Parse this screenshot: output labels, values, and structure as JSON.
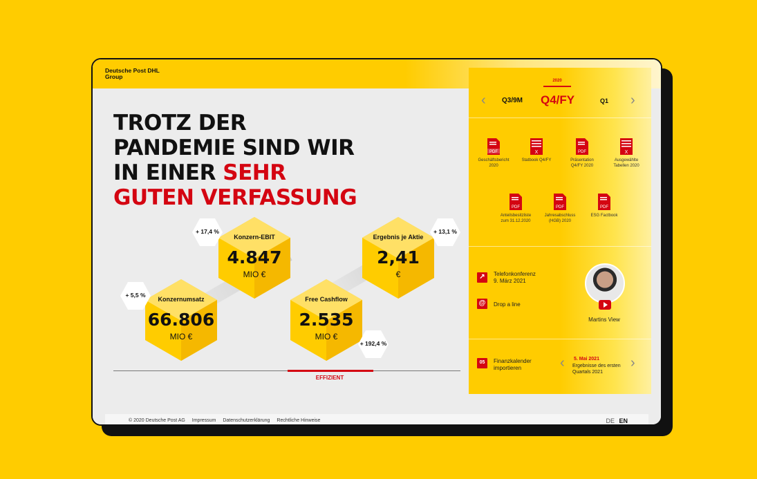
{
  "colors": {
    "background": "#ffcc00",
    "accent_red": "#d40511",
    "device_frame": "#111111"
  },
  "brand": {
    "line1": "Deutsche Post DHL",
    "line2": "Group"
  },
  "headline": {
    "line1": "TROTZ DER",
    "line2": "PANDEMIE SIND WIR",
    "line3a": "IN EINER ",
    "line3b": "SEHR",
    "line4": "GUTEN VERFASSUNG"
  },
  "kpis": [
    {
      "label": "Konzernumsatz",
      "value": "66.806",
      "unit": "MIO €",
      "change": "+ 5,5 %"
    },
    {
      "label": "Konzern-EBIT",
      "value": "4.847",
      "unit": "MIO €",
      "change": "+ 17,4 %"
    },
    {
      "label": "Free Cashflow",
      "value": "2.535",
      "unit": "MIO €",
      "change": "+ 192,4 %"
    },
    {
      "label": "Ergebnis je Aktie",
      "value": "2,41",
      "unit": "€",
      "change": "+ 13,1 %"
    }
  ],
  "effizient_label": "EFFIZIENT",
  "footer": {
    "copyright": "© 2020 Deutsche Post AG",
    "impressum": "Impressum",
    "datenschutz": "Datenschutzerklärung",
    "rechtlich": "Rechtliche Hinweise",
    "lang_de": "DE",
    "lang_en": "EN"
  },
  "panel": {
    "year": "2020",
    "quarter_prev": "Q3/9M",
    "quarter_current": "Q4/FY",
    "quarter_next": "Q1",
    "documents": [
      {
        "line1": "Geschäftsbericht",
        "line2": "2020",
        "icon": "pdf-icon"
      },
      {
        "line1": "Statbook Q4/FY",
        "line2": "",
        "icon": "excel-icon"
      },
      {
        "line1": "Präsentation",
        "line2": "Q4/FY 2020",
        "icon": "pdf-icon"
      },
      {
        "line1": "Ausgewählte",
        "line2": "Tabellen 2020",
        "icon": "excel-icon"
      },
      {
        "line1": "Anteilsbesitzliste",
        "line2": "zum 31.12.2020",
        "icon": "pdf-icon"
      },
      {
        "line1": "Jahresabschluss",
        "line2": "(HGB) 2020",
        "icon": "pdf-icon"
      },
      {
        "line1": "ESG Factbook",
        "line2": "",
        "icon": "pdf-icon"
      }
    ],
    "conference": {
      "line1": "Telefonkonferenz",
      "line2": "9. März 2021"
    },
    "drop_line": "Drop a line",
    "video_caption": "Martins View",
    "calendar": {
      "line1": "Finanzkalender",
      "line2": "importieren"
    },
    "event": {
      "date": "5. Mai 2021",
      "line1": "Ergebnisse des ersten",
      "line2": "Quartals 2021"
    }
  }
}
